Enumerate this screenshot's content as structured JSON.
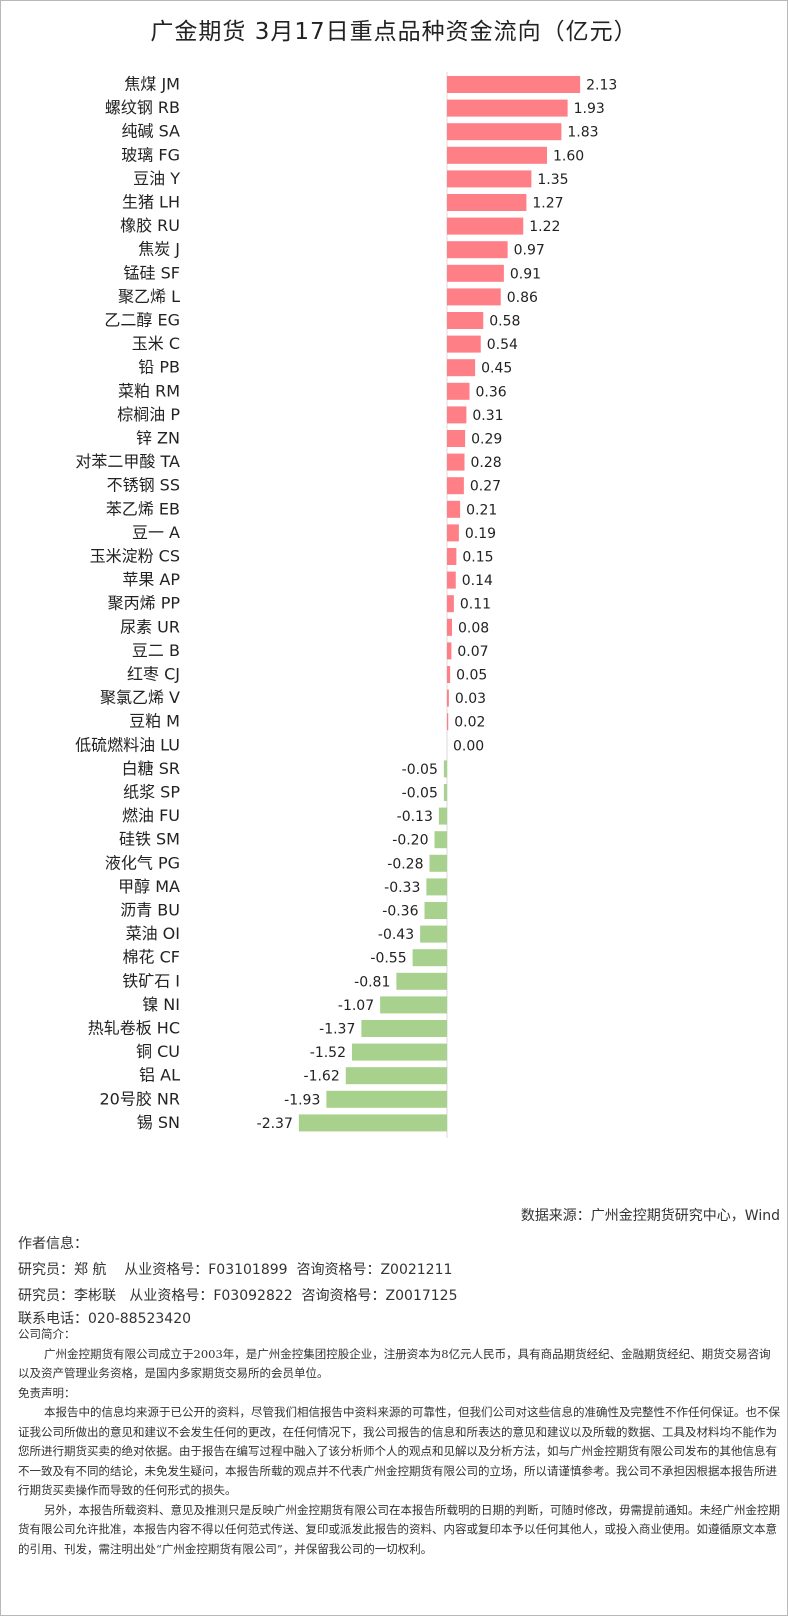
{
  "title": "广金期货 3月17日重点品种资金流向（亿元）",
  "colors": {
    "positive": "#ff7f86",
    "negative": "#a9d18e",
    "axis": "#d9d9d9"
  },
  "chart_data": {
    "type": "bar",
    "orientation": "horizontal",
    "title": "广金期货 3月17日重点品种资金流向（亿元）",
    "categories": [
      "焦煤 JM",
      "螺纹钢 RB",
      "纯碱 SA",
      "玻璃 FG",
      "豆油 Y",
      "生猪 LH",
      "橡胶 RU",
      "焦炭 J",
      "锰硅 SF",
      "聚乙烯 L",
      "乙二醇 EG",
      "玉米 C",
      "铅 PB",
      "菜粕 RM",
      "棕榈油 P",
      "锌 ZN",
      "对苯二甲酸 TA",
      "不锈钢 SS",
      "苯乙烯 EB",
      "豆一 A",
      "玉米淀粉 CS",
      "苹果 AP",
      "聚丙烯 PP",
      "尿素 UR",
      "豆二 B",
      "红枣 CJ",
      "聚氯乙烯 V",
      "豆粕 M",
      "低硫燃料油 LU",
      "白糖 SR",
      "纸浆 SP",
      "燃油 FU",
      "硅铁 SM",
      "液化气 PG",
      "甲醇 MA",
      "沥青 BU",
      "菜油 OI",
      "棉花 CF",
      "铁矿石 I",
      "镍 NI",
      "热轧卷板 HC",
      "铜 CU",
      "铝 AL",
      "20号胶 NR",
      "锡 SN"
    ],
    "values": [
      2.13,
      1.93,
      1.83,
      1.6,
      1.35,
      1.27,
      1.22,
      0.97,
      0.91,
      0.86,
      0.58,
      0.54,
      0.45,
      0.36,
      0.31,
      0.29,
      0.28,
      0.27,
      0.21,
      0.19,
      0.15,
      0.14,
      0.11,
      0.08,
      0.07,
      0.05,
      0.03,
      0.02,
      0.0,
      -0.05,
      -0.05,
      -0.13,
      -0.2,
      -0.28,
      -0.33,
      -0.36,
      -0.43,
      -0.55,
      -0.81,
      -1.07,
      -1.37,
      -1.52,
      -1.62,
      -1.93,
      -2.37
    ],
    "value_labels": [
      "2.13",
      "1.93",
      "1.83",
      "1.60",
      "1.35",
      "1.27",
      "1.22",
      "0.97",
      "0.91",
      "0.86",
      "0.58",
      "0.54",
      "0.45",
      "0.36",
      "0.31",
      "0.29",
      "0.28",
      "0.27",
      "0.21",
      "0.19",
      "0.15",
      "0.14",
      "0.11",
      "0.08",
      "0.07",
      "0.05",
      "0.03",
      "0.02",
      "0.00",
      "-0.05",
      "-0.05",
      "-0.13",
      "-0.20",
      "-0.28",
      "-0.33",
      "-0.36",
      "-0.43",
      "-0.55",
      "-0.81",
      "-1.07",
      "-1.37",
      "-1.52",
      "-1.62",
      "-1.93",
      "-2.37"
    ],
    "grid": false,
    "legend": "none"
  },
  "source": "数据来源：广州金控期货研究中心，Wind",
  "author": {
    "heading": "作者信息：",
    "line1": "研究员：郑 航    从业资格号：F03101899  咨询资格号：Z0021211",
    "line2": "研究员：李彬联   从业资格号：F03092822  咨询资格号：Z0017125",
    "phone": "联系电话：020-88523420"
  },
  "disclaimer": {
    "company_heading": "公司简介：",
    "company_text": "广州金控期货有限公司成立于2003年，是广州金控集团控股企业，注册资本为8亿元人民币，具有商品期货经纪、金融期货经纪、期货交易咨询以及资产管理业务资格，是国内多家期货交易所的会员单位。",
    "statement_heading": "免责声明：",
    "statement_text1": "本报告中的信息均来源于已公开的资料，尽管我们相信报告中资料来源的可靠性，但我们公司对这些信息的准确性及完整性不作任何保证。也不保证我公司所做出的意见和建议不会发生任何的更改，在任何情况下，我公司报告的信息和所表达的意见和建议以及所载的数据、工具及材料均不能作为您所进行期货买卖的绝对依据。由于报告在编写过程中融入了该分析师个人的观点和见解以及分析方法，如与广州金控期货有限公司发布的其他信息有不一致及有不同的结论，未免发生疑问，本报告所载的观点并不代表广州金控期货有限公司的立场，所以请谨慎参考。我公司不承担因根据本报告所进行期货买卖操作而导致的任何形式的损失。",
    "statement_text2": "另外，本报告所载资料、意见及推测只是反映广州金控期货有限公司在本报告所载明的日期的判断，可随时修改，毋需提前通知。未经广州金控期货有限公司允许批准，本报告内容不得以任何范式传送、复印或派发此报告的资料、内容或复印本予以任何其他人，或投入商业使用。如遵循原文本意的引用、刊发，需注明出处“广州金控期货有限公司”，并保留我公司的一切权利。"
  }
}
